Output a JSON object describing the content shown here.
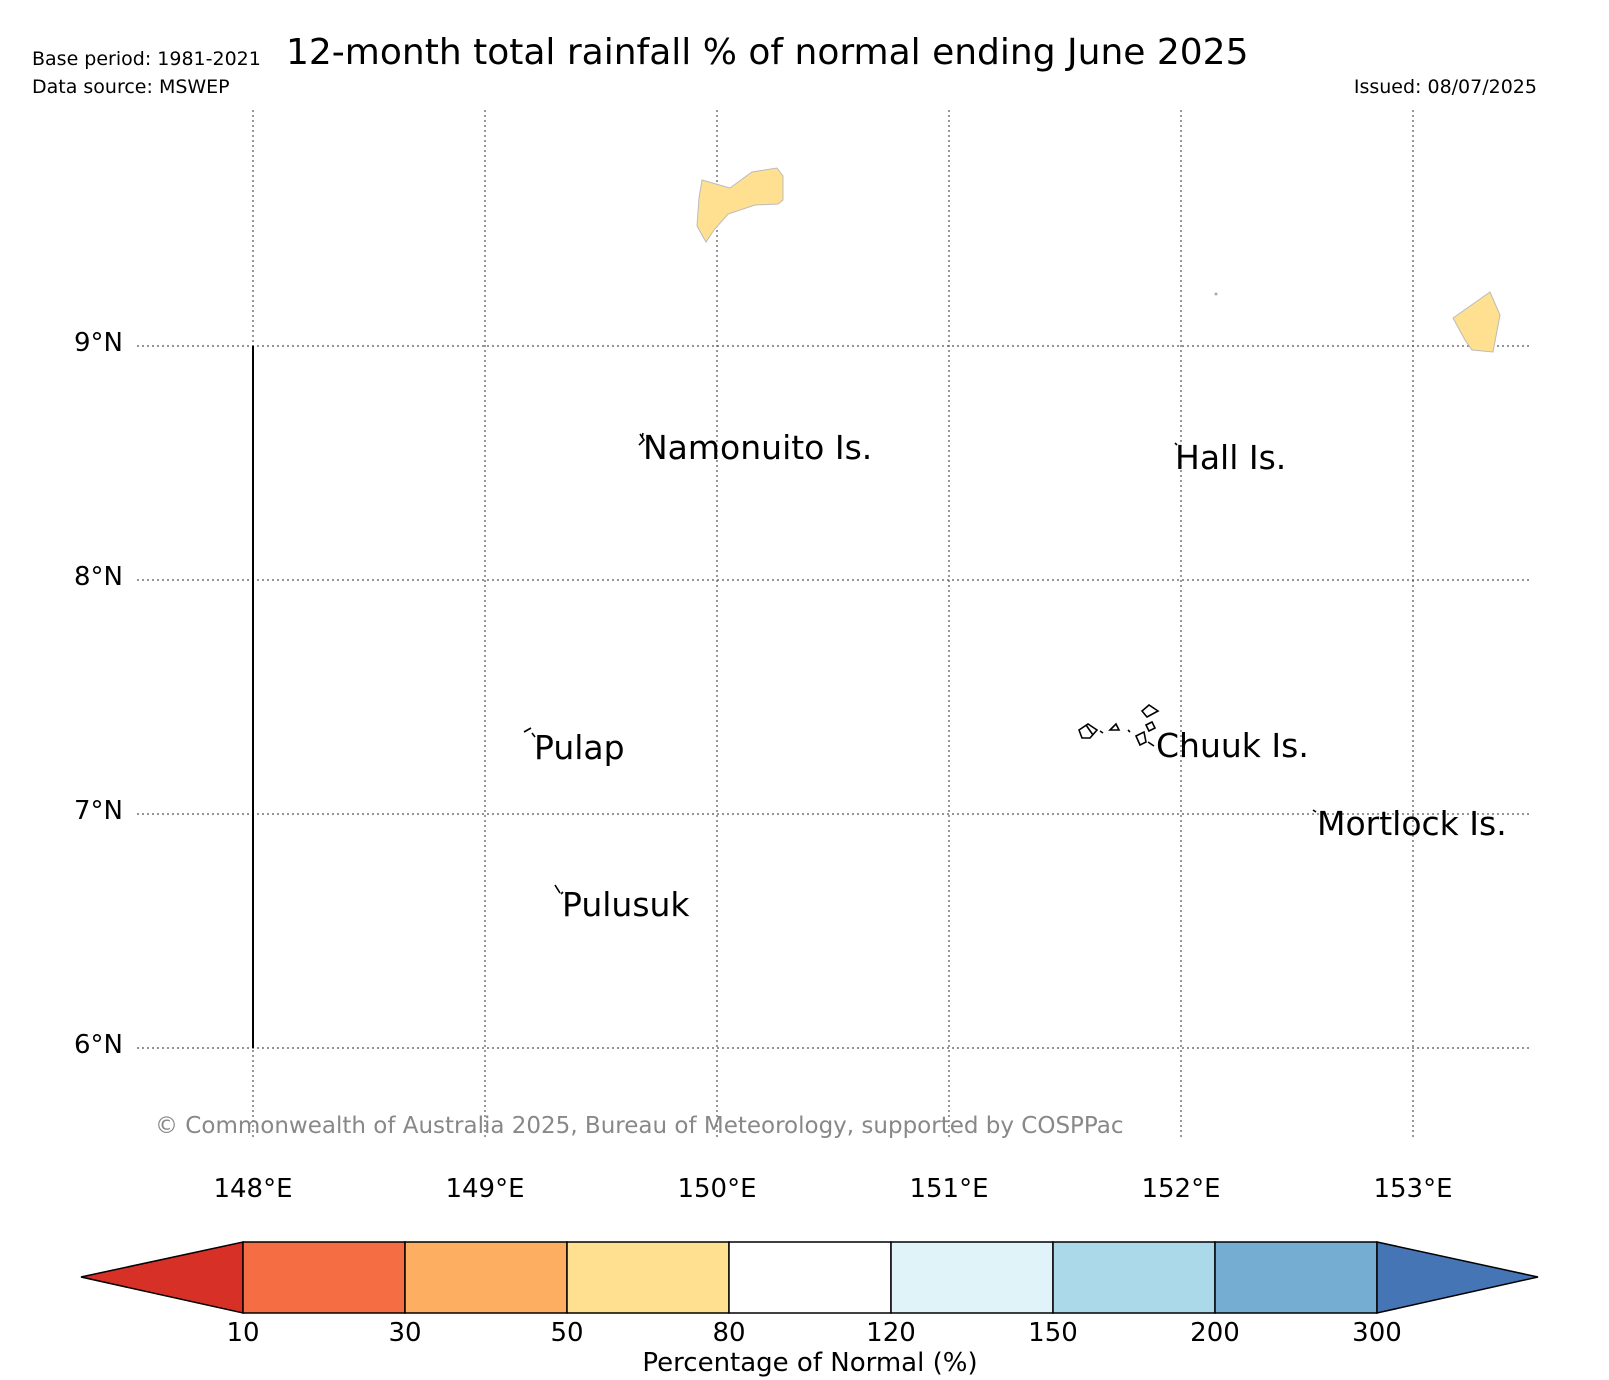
{
  "header": {
    "title": "12-month total rainfall % of normal ending June 2025",
    "base_period": "Base period: 1981-2021",
    "data_source": "Data source: MSWEP",
    "issued": "Issued: 08/07/2025"
  },
  "map": {
    "lat_ticks": [
      "9°N",
      "8°N",
      "7°N",
      "6°N"
    ],
    "lon_ticks": [
      "148°E",
      "149°E",
      "150°E",
      "151°E",
      "152°E",
      "153°E"
    ],
    "places": {
      "namonuito": "Namonuito Is.",
      "hall": "Hall Is.",
      "pulap": "Pulap",
      "chuuk": "Chuuk Is.",
      "mortlock": "Mortlock Is.",
      "pulusuk": "Pulusuk"
    },
    "copyright": "© Commonwealth of Australia 2025, Bureau of Meteorology, supported by COSPPac",
    "grid": true
  },
  "colorbar": {
    "labels": [
      "10",
      "30",
      "50",
      "80",
      "120",
      "150",
      "200",
      "300"
    ],
    "title": "Percentage of Normal (%)",
    "colors": [
      "#d73027",
      "#f46d43",
      "#fdae61",
      "#fee090",
      "#ffffff",
      "#e0f3f8",
      "#abd9e9",
      "#74add1",
      "#4575b4"
    ]
  }
}
